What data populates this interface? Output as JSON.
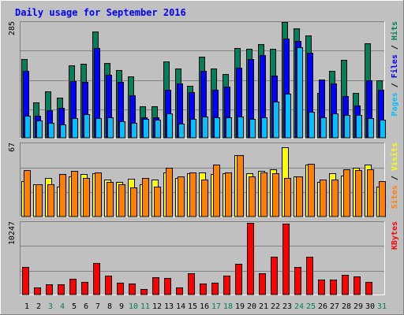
{
  "title": "Daily usage for September 2016",
  "colors": {
    "background": "#c0c0c0",
    "title": "#0000ff",
    "hits": "#00805c",
    "files": "#0000ff",
    "pages": "#00c0ff",
    "visits": "#ffff00",
    "sites": "#ff8000",
    "kbytes": "#ff0000",
    "weekend_label": "#00805c",
    "weekday_label": "#000000"
  },
  "chart_data": [
    {
      "type": "bar",
      "panel": "top",
      "y_max_label": "285",
      "right_label_parts": [
        {
          "text": "Pages",
          "color_key": "pages"
        },
        {
          "text": " / ",
          "color_key": "weekday_label"
        },
        {
          "text": "Files",
          "color_key": "files"
        },
        {
          "text": " / ",
          "color_key": "weekday_label"
        },
        {
          "text": "Hits",
          "color_key": "hits"
        }
      ],
      "ylim": [
        0,
        285
      ],
      "categories": [
        "1",
        "2",
        "3",
        "4",
        "5",
        "6",
        "7",
        "8",
        "9",
        "10",
        "11",
        "12",
        "13",
        "14",
        "15",
        "16",
        "17",
        "18",
        "19",
        "20",
        "21",
        "22",
        "23",
        "24",
        "25",
        "26",
        "27",
        "28",
        "29",
        "30",
        "31"
      ],
      "series": [
        {
          "name": "Hits",
          "color_key": "hits",
          "values": [
            196,
            87,
            115,
            100,
            180,
            183,
            263,
            185,
            168,
            153,
            79,
            79,
            189,
            171,
            128,
            201,
            172,
            158,
            223,
            220,
            232,
            220,
            286,
            272,
            253,
            112,
            166,
            193,
            112,
            235,
            143
          ]
        },
        {
          "name": "Files",
          "color_key": "files",
          "values": [
            166,
            55,
            68,
            74,
            140,
            139,
            223,
            156,
            138,
            106,
            50,
            50,
            120,
            134,
            114,
            166,
            119,
            126,
            174,
            196,
            205,
            154,
            245,
            241,
            210,
            145,
            135,
            104,
            80,
            142,
            120
          ]
        },
        {
          "name": "Pages",
          "color_key": "pages",
          "values": [
            54,
            43,
            38,
            33,
            48,
            59,
            49,
            50,
            41,
            38,
            46,
            44,
            60,
            36,
            47,
            53,
            51,
            51,
            52,
            46,
            51,
            89,
            109,
            225,
            64,
            51,
            60,
            57,
            56,
            48,
            44
          ]
        }
      ]
    },
    {
      "type": "bar",
      "panel": "middle",
      "y_max_label": "67",
      "right_label_parts": [
        {
          "text": "Sites",
          "color_key": "sites"
        },
        {
          "text": " / ",
          "color_key": "weekday_label"
        },
        {
          "text": "Visits",
          "color_key": "visits"
        }
      ],
      "ylim": [
        0,
        67
      ],
      "categories": [
        "1",
        "2",
        "3",
        "4",
        "5",
        "6",
        "7",
        "8",
        "9",
        "10",
        "11",
        "12",
        "13",
        "14",
        "15",
        "16",
        "17",
        "18",
        "19",
        "20",
        "21",
        "22",
        "23",
        "24",
        "25",
        "26",
        "27",
        "28",
        "29",
        "30",
        "31"
      ],
      "series": [
        {
          "name": "Visits",
          "color_key": "visits",
          "values": [
            33,
            30,
            36,
            28,
            37,
            39,
            40,
            34,
            32,
            35,
            30,
            34,
            41,
            36,
            40,
            41,
            39,
            40,
            57,
            40,
            42,
            44,
            64,
            37,
            48,
            32,
            40,
            38,
            45,
            48,
            28
          ]
        },
        {
          "name": "Sites",
          "color_key": "sites",
          "values": [
            43,
            30,
            30,
            39,
            42,
            36,
            41,
            32,
            30,
            27,
            36,
            28,
            45,
            37,
            41,
            34,
            48,
            41,
            57,
            37,
            41,
            40,
            36,
            37,
            49,
            34,
            34,
            44,
            43,
            44,
            33
          ]
        }
      ]
    },
    {
      "type": "bar",
      "panel": "bottom",
      "y_max_label": "10247",
      "right_label_parts": [
        {
          "text": "KBytes",
          "color_key": "kbytes"
        }
      ],
      "ylim": [
        0,
        10247
      ],
      "categories": [
        "1",
        "2",
        "3",
        "4",
        "5",
        "6",
        "7",
        "8",
        "9",
        "10",
        "11",
        "12",
        "13",
        "14",
        "15",
        "16",
        "17",
        "18",
        "19",
        "20",
        "21",
        "22",
        "23",
        "24",
        "25",
        "26",
        "27",
        "28",
        "29",
        "30",
        "31"
      ],
      "series": [
        {
          "name": "KBytes",
          "color_key": "kbytes",
          "values": [
            3960,
            1040,
            1430,
            1430,
            2290,
            1770,
            4480,
            2690,
            1730,
            1600,
            800,
            2510,
            2340,
            1040,
            3040,
            1600,
            1690,
            2690,
            4440,
            10270,
            2990,
            5380,
            10090,
            3960,
            5380,
            2090,
            2090,
            2770,
            2640,
            1830,
            0
          ]
        }
      ]
    }
  ],
  "x_labels": [
    {
      "text": "1",
      "weekend": false
    },
    {
      "text": "2",
      "weekend": false
    },
    {
      "text": "3",
      "weekend": true
    },
    {
      "text": "4",
      "weekend": true
    },
    {
      "text": "5",
      "weekend": false
    },
    {
      "text": "6",
      "weekend": false
    },
    {
      "text": "7",
      "weekend": false
    },
    {
      "text": "8",
      "weekend": false
    },
    {
      "text": "9",
      "weekend": false
    },
    {
      "text": "10",
      "weekend": true
    },
    {
      "text": "11",
      "weekend": true
    },
    {
      "text": "12",
      "weekend": false
    },
    {
      "text": "13",
      "weekend": false
    },
    {
      "text": "14",
      "weekend": false
    },
    {
      "text": "15",
      "weekend": false
    },
    {
      "text": "16",
      "weekend": false
    },
    {
      "text": "17",
      "weekend": true
    },
    {
      "text": "18",
      "weekend": true
    },
    {
      "text": "19",
      "weekend": false
    },
    {
      "text": "20",
      "weekend": false
    },
    {
      "text": "21",
      "weekend": false
    },
    {
      "text": "22",
      "weekend": false
    },
    {
      "text": "23",
      "weekend": false
    },
    {
      "text": "24",
      "weekend": true
    },
    {
      "text": "25",
      "weekend": true
    },
    {
      "text": "26",
      "weekend": false
    },
    {
      "text": "27",
      "weekend": false
    },
    {
      "text": "28",
      "weekend": false
    },
    {
      "text": "29",
      "weekend": false
    },
    {
      "text": "30",
      "weekend": false
    },
    {
      "text": "31",
      "weekend": true
    }
  ]
}
